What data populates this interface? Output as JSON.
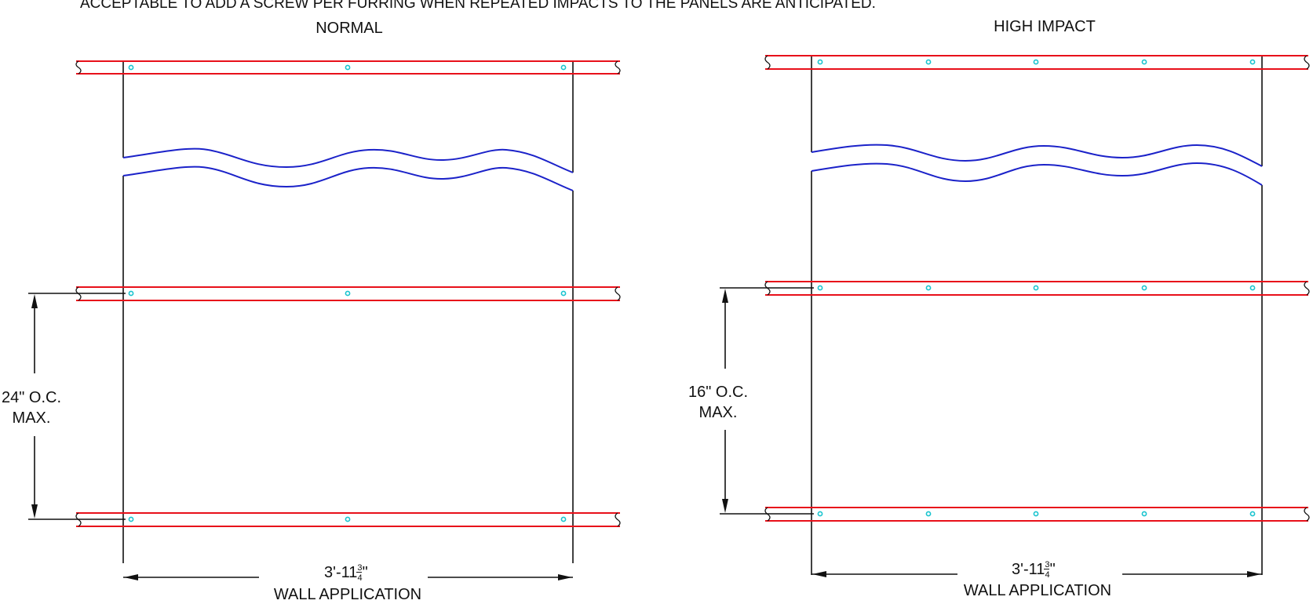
{
  "header_note": "ACCEPTABLE TO ADD A SCREW PER FURRING WHEN REPEATED IMPACTS TO THE PANELS ARE ANTICIPATED.",
  "details": [
    {
      "title": "NORMAL",
      "spacing_line1": "24\" O.C.",
      "spacing_line2": "MAX.",
      "width_whole": "3'-11",
      "width_num": "3",
      "width_den": "4",
      "width_inch": "\"",
      "application": "WALL APPLICATION",
      "screws_per_furring": 3,
      "furring_count": 3
    },
    {
      "title": "HIGH IMPACT",
      "spacing_line1": "16\" O.C.",
      "spacing_line2": "MAX.",
      "width_whole": "3'-11",
      "width_num": "3",
      "width_den": "4",
      "width_inch": "\"",
      "application": "WALL APPLICATION",
      "screws_per_furring": 5,
      "furring_count": 3
    }
  ],
  "colors": {
    "furring": "#e8101a",
    "screw": "#19c4cf",
    "break_line": "#1b22c9",
    "linework": "#111111"
  }
}
